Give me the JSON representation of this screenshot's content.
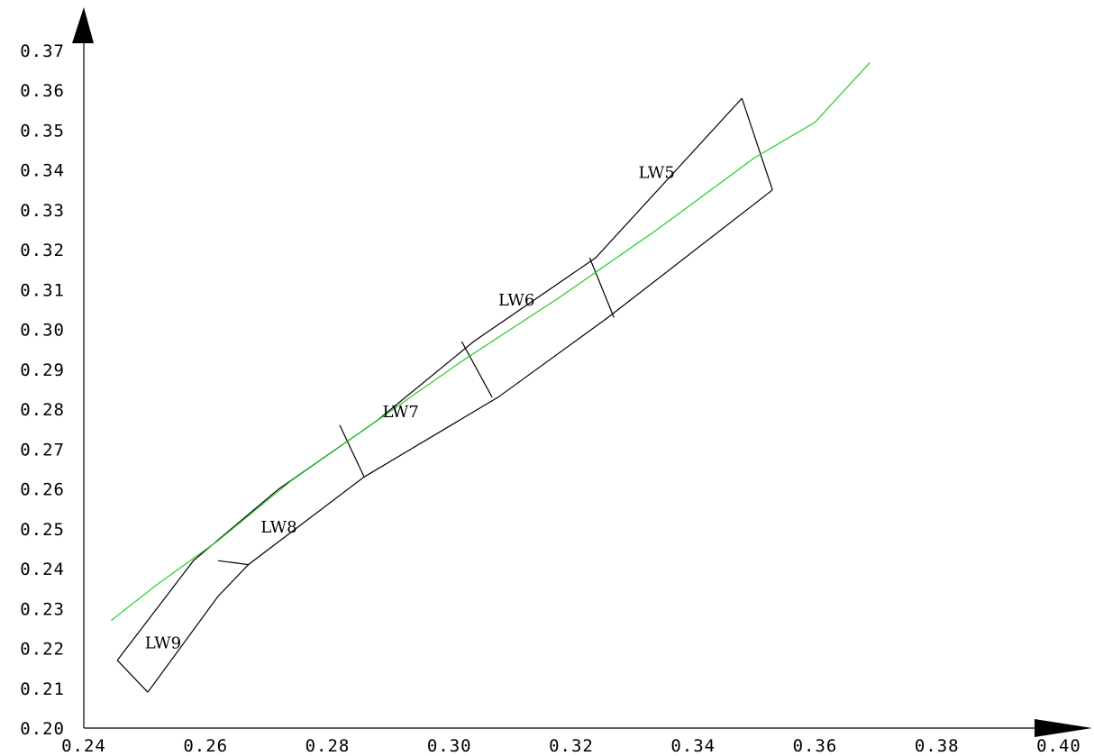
{
  "chart_data": {
    "type": "line",
    "title": "",
    "xlabel": "",
    "ylabel": "",
    "xlim": [
      0.24,
      0.4
    ],
    "ylim": [
      0.2,
      0.37
    ],
    "x_ticks": [
      "0.24",
      "0.26",
      "0.28",
      "0.30",
      "0.32",
      "0.34",
      "0.36",
      "0.38",
      "0.40"
    ],
    "y_ticks": [
      "0.20",
      "0.21",
      "0.22",
      "0.23",
      "0.24",
      "0.25",
      "0.26",
      "0.27",
      "0.28",
      "0.29",
      "0.30",
      "0.31",
      "0.32",
      "0.33",
      "0.34",
      "0.35",
      "0.36",
      "0.37"
    ],
    "grid": false,
    "series": [
      {
        "color": "#22cc22",
        "x": [
          0.2445,
          0.252,
          0.262,
          0.274,
          0.288,
          0.302,
          0.318,
          0.334,
          0.35,
          0.36,
          0.369
        ],
        "y": [
          0.227,
          0.236,
          0.247,
          0.262,
          0.277,
          0.292,
          0.308,
          0.325,
          0.343,
          0.352,
          0.367
        ]
      }
    ],
    "band": {
      "upper_edge": {
        "x": [
          0.2455,
          0.258,
          0.272,
          0.288,
          0.304,
          0.324,
          0.348
        ],
        "y": [
          0.217,
          0.242,
          0.26,
          0.277,
          0.297,
          0.318,
          0.358
        ]
      },
      "lower_edge": {
        "x": [
          0.2505,
          0.262,
          0.267,
          0.286,
          0.308,
          0.326,
          0.353
        ],
        "y": [
          0.209,
          0.233,
          0.241,
          0.263,
          0.283,
          0.303,
          0.335
        ]
      },
      "segments": [
        {
          "label": "LW5",
          "x": 0.334,
          "y": 0.338
        },
        {
          "label": "LW6",
          "x": 0.311,
          "y": 0.306
        },
        {
          "label": "LW7",
          "x": 0.292,
          "y": 0.278
        },
        {
          "label": "LW8",
          "x": 0.272,
          "y": 0.249
        },
        {
          "label": "LW9",
          "x": 0.253,
          "y": 0.22
        }
      ],
      "dividers": [
        {
          "x": [
            0.323,
            0.327
          ],
          "y": [
            0.318,
            0.303
          ]
        },
        {
          "x": [
            0.302,
            0.307
          ],
          "y": [
            0.297,
            0.283
          ]
        },
        {
          "x": [
            0.282,
            0.286
          ],
          "y": [
            0.276,
            0.263
          ]
        },
        {
          "x": [
            0.262,
            0.267
          ],
          "y": [
            0.242,
            0.241
          ]
        }
      ],
      "top_cap": {
        "x": [
          0.348,
          0.353
        ],
        "y": [
          0.358,
          0.335
        ]
      },
      "bottom_cap": {
        "x": [
          0.2455,
          0.2505
        ],
        "y": [
          0.217,
          0.209
        ]
      }
    }
  }
}
